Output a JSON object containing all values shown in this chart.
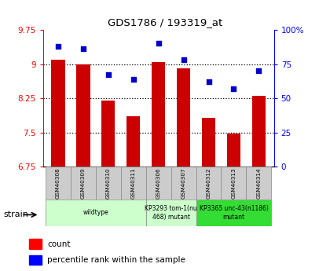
{
  "title": "GDS1786 / 193319_at",
  "samples": [
    "GSM40308",
    "GSM40309",
    "GSM40310",
    "GSM40311",
    "GSM40306",
    "GSM40307",
    "GSM40312",
    "GSM40313",
    "GSM40314"
  ],
  "bar_values": [
    9.1,
    9.0,
    8.2,
    7.85,
    9.05,
    8.9,
    7.82,
    7.48,
    8.3
  ],
  "scatter_values": [
    88,
    86,
    67,
    64,
    90,
    78,
    62,
    57,
    70
  ],
  "ylim_left": [
    6.75,
    9.75
  ],
  "ylim_right": [
    0,
    100
  ],
  "yticks_left": [
    6.75,
    7.5,
    8.25,
    9.0,
    9.75
  ],
  "yticks_right": [
    0,
    25,
    50,
    75,
    100
  ],
  "ytick_labels_left": [
    "6.75",
    "7.5",
    "8.25",
    "9",
    "9.75"
  ],
  "ytick_labels_right": [
    "0",
    "25",
    "50",
    "75",
    "100%"
  ],
  "bar_color": "#cc0000",
  "scatter_color": "#0000cc",
  "bar_bottom": 6.75,
  "grid_yticks": [
    7.5,
    8.25,
    9.0
  ],
  "background_color": "#ffffff",
  "group_configs": [
    {
      "label": "wildtype",
      "start": 0,
      "end": 3,
      "color": "#ccffcc"
    },
    {
      "label": "KP3293 tom-1(nu\n468) mutant",
      "start": 4,
      "end": 5,
      "color": "#ccffcc"
    },
    {
      "label": "KP3365 unc-43(n1186)\nmutant",
      "start": 6,
      "end": 8,
      "color": "#33dd33"
    }
  ]
}
